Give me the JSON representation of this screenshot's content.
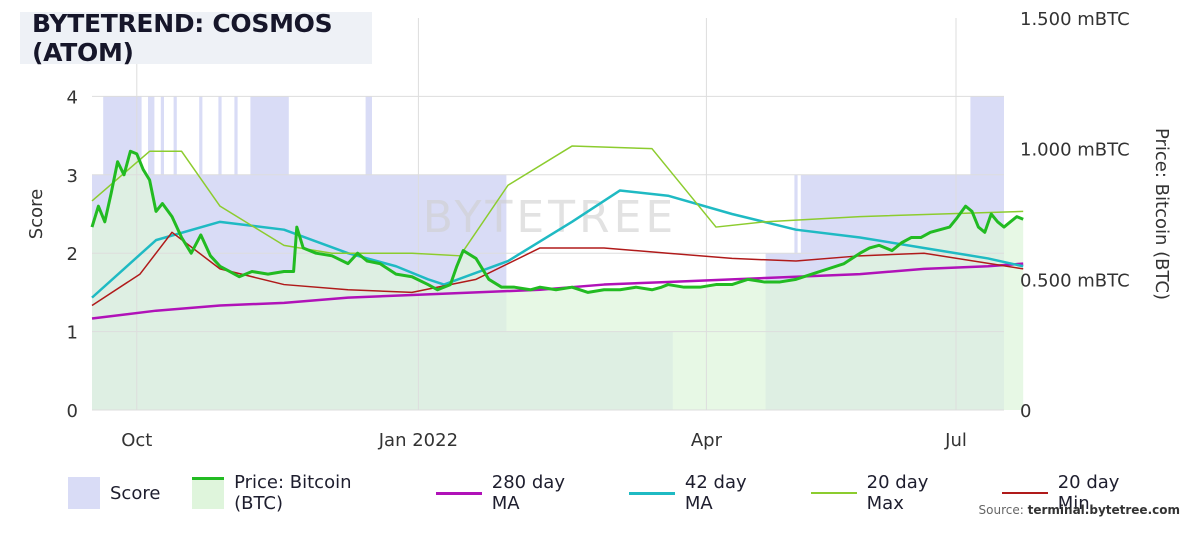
{
  "title": "BYTETREND: COSMOS (ATOM)",
  "watermark": "BYTETREE",
  "source_label": "Source:",
  "source_site": "terminal.bytetree.com",
  "colors": {
    "score_fill": "#d9dcf6",
    "price_fill": "#dff5dc",
    "overlap_fill": "#c8e0d8",
    "price": "#22bb22",
    "ma280": "#b012b8",
    "ma42": "#1fbac3",
    "max20": "#8ccc2e",
    "min20": "#b01a1a"
  },
  "legend": [
    {
      "key": "score",
      "label": "Score",
      "kind": "box",
      "color": "#d9dcf6"
    },
    {
      "key": "price",
      "label": "Price: Bitcoin (BTC)",
      "kind": "box-line",
      "color": "#22bb22",
      "fill": "#dff5dc"
    },
    {
      "key": "ma280",
      "label": "280 day MA",
      "kind": "line",
      "color": "#b012b8"
    },
    {
      "key": "ma42",
      "label": "42 day MA",
      "kind": "line",
      "color": "#1fbac3"
    },
    {
      "key": "max20",
      "label": "20 day Max",
      "kind": "thin-line",
      "color": "#8ccc2e"
    },
    {
      "key": "min20",
      "label": "20 day Min",
      "kind": "thin-line",
      "color": "#b01a1a"
    }
  ],
  "chart_data": {
    "type": "line",
    "title": "BYTETREND: COSMOS (ATOM)",
    "x_ticks": [
      "Oct",
      "Jan 2022",
      "Apr",
      "Jul"
    ],
    "y_left": {
      "label": "Score",
      "ticks": [
        "0",
        "1",
        "2",
        "3",
        "4"
      ],
      "range": [
        0,
        5
      ]
    },
    "y_right": {
      "label": "Price: Bitcoin (BTC)",
      "ticks": [
        "0",
        "0.500 mBTC",
        "1.000 mBTC",
        "1.500 mBTC"
      ],
      "range": [
        0,
        1.5
      ]
    },
    "grid": true,
    "legend_position": "bottom",
    "score": [
      3,
      3,
      3,
      3,
      4,
      4,
      4,
      4,
      4,
      4,
      4,
      4,
      4,
      4,
      4,
      4,
      3,
      3,
      4,
      4,
      3,
      3,
      4,
      3,
      3,
      3,
      4,
      3,
      3,
      3,
      3,
      3,
      3,
      3,
      4,
      3,
      3,
      3,
      3,
      3,
      4,
      3,
      3,
      3,
      3,
      4,
      3,
      3,
      3,
      3,
      4,
      4,
      4,
      4,
      4,
      4,
      4,
      4,
      4,
      4,
      4,
      4,
      3,
      3,
      3,
      3,
      3,
      3,
      3,
      3,
      3,
      3,
      3,
      3,
      3,
      3,
      3,
      3,
      3,
      3,
      3,
      3,
      3,
      3,
      3,
      3,
      4,
      4,
      3,
      3,
      3,
      3,
      3,
      3,
      3,
      3,
      3,
      3,
      3,
      3,
      3,
      3,
      3,
      3,
      3,
      3,
      3,
      3,
      3,
      3,
      3,
      3,
      3,
      3,
      3,
      3,
      3,
      3,
      3,
      3,
      3,
      3,
      3,
      3,
      3,
      3,
      3,
      3,
      3,
      3,
      1,
      1,
      1,
      1,
      1,
      1,
      1,
      1,
      1,
      1,
      1,
      1,
      1,
      1,
      1,
      1,
      1,
      1,
      1,
      1,
      1,
      1,
      1,
      1,
      1,
      1,
      1,
      1,
      1,
      1,
      1,
      1,
      1,
      1,
      1,
      1,
      1,
      1,
      1,
      1,
      1,
      1,
      1,
      1,
      1,
      1,
      1,
      1,
      1,
      1,
      1,
      1,
      0,
      0,
      0,
      0,
      0,
      0,
      0,
      0,
      0,
      0,
      0,
      0,
      0,
      0,
      0,
      0,
      0,
      0,
      0,
      0,
      0,
      0,
      0,
      0,
      0,
      0,
      0,
      0,
      0,
      2,
      2,
      2,
      2,
      2,
      2,
      2,
      2,
      2,
      3,
      2,
      3,
      3,
      3,
      3,
      3,
      3,
      3,
      3,
      3,
      3,
      3,
      3,
      3,
      3,
      3,
      3,
      3,
      3,
      3,
      3,
      3,
      3,
      3,
      3,
      3,
      3,
      3,
      3,
      3,
      3,
      3,
      3,
      3,
      3,
      3,
      3,
      3,
      3,
      3,
      3,
      3,
      3,
      3,
      3,
      3,
      3,
      3,
      3,
      3,
      3,
      3,
      3,
      3,
      4,
      4,
      4,
      4,
      4,
      4,
      4,
      4,
      4,
      4,
      4
    ],
    "price_btc": [
      [
        0,
        0.7
      ],
      [
        2,
        0.78
      ],
      [
        4,
        0.72
      ],
      [
        6,
        0.83
      ],
      [
        8,
        0.95
      ],
      [
        10,
        0.9
      ],
      [
        12,
        0.99
      ],
      [
        14,
        0.98
      ],
      [
        16,
        0.92
      ],
      [
        18,
        0.88
      ],
      [
        20,
        0.76
      ],
      [
        22,
        0.79
      ],
      [
        25,
        0.74
      ],
      [
        28,
        0.66
      ],
      [
        31,
        0.6
      ],
      [
        34,
        0.67
      ],
      [
        37,
        0.59
      ],
      [
        40,
        0.55
      ],
      [
        43,
        0.53
      ],
      [
        46,
        0.51
      ],
      [
        50,
        0.53
      ],
      [
        55,
        0.52
      ],
      [
        60,
        0.53
      ],
      [
        63,
        0.53
      ],
      [
        64,
        0.7
      ],
      [
        66,
        0.62
      ],
      [
        70,
        0.6
      ],
      [
        75,
        0.59
      ],
      [
        80,
        0.56
      ],
      [
        83,
        0.6
      ],
      [
        86,
        0.57
      ],
      [
        90,
        0.56
      ],
      [
        95,
        0.52
      ],
      [
        100,
        0.51
      ],
      [
        105,
        0.48
      ],
      [
        108,
        0.46
      ],
      [
        112,
        0.48
      ],
      [
        114,
        0.55
      ],
      [
        116,
        0.61
      ],
      [
        120,
        0.58
      ],
      [
        124,
        0.5
      ],
      [
        128,
        0.47
      ],
      [
        132,
        0.47
      ],
      [
        137,
        0.46
      ],
      [
        140,
        0.47
      ],
      [
        145,
        0.46
      ],
      [
        150,
        0.47
      ],
      [
        155,
        0.45
      ],
      [
        160,
        0.46
      ],
      [
        165,
        0.46
      ],
      [
        170,
        0.47
      ],
      [
        175,
        0.46
      ],
      [
        178,
        0.47
      ],
      [
        180,
        0.48
      ],
      [
        185,
        0.47
      ],
      [
        190,
        0.47
      ],
      [
        195,
        0.48
      ],
      [
        200,
        0.48
      ],
      [
        205,
        0.5
      ],
      [
        210,
        0.49
      ],
      [
        215,
        0.49
      ],
      [
        220,
        0.5
      ],
      [
        225,
        0.52
      ],
      [
        230,
        0.54
      ],
      [
        235,
        0.56
      ],
      [
        240,
        0.6
      ],
      [
        243,
        0.62
      ],
      [
        246,
        0.63
      ],
      [
        250,
        0.61
      ],
      [
        253,
        0.64
      ],
      [
        256,
        0.66
      ],
      [
        259,
        0.66
      ],
      [
        262,
        0.68
      ],
      [
        265,
        0.69
      ],
      [
        268,
        0.7
      ],
      [
        270,
        0.73
      ],
      [
        273,
        0.78
      ],
      [
        275,
        0.76
      ],
      [
        277,
        0.7
      ],
      [
        279,
        0.68
      ],
      [
        281,
        0.75
      ],
      [
        283,
        0.72
      ],
      [
        285,
        0.7
      ],
      [
        287,
        0.72
      ],
      [
        289,
        0.74
      ],
      [
        291,
        0.73
      ]
    ],
    "ma280": [
      [
        0,
        0.35
      ],
      [
        20,
        0.38
      ],
      [
        40,
        0.4
      ],
      [
        60,
        0.41
      ],
      [
        80,
        0.43
      ],
      [
        100,
        0.44
      ],
      [
        120,
        0.45
      ],
      [
        140,
        0.46
      ],
      [
        160,
        0.48
      ],
      [
        180,
        0.49
      ],
      [
        200,
        0.5
      ],
      [
        220,
        0.51
      ],
      [
        240,
        0.52
      ],
      [
        260,
        0.54
      ],
      [
        280,
        0.55
      ],
      [
        291,
        0.56
      ]
    ],
    "ma42": [
      [
        0,
        0.43
      ],
      [
        20,
        0.65
      ],
      [
        40,
        0.72
      ],
      [
        60,
        0.69
      ],
      [
        80,
        0.6
      ],
      [
        95,
        0.55
      ],
      [
        105,
        0.5
      ],
      [
        110,
        0.48
      ],
      [
        130,
        0.57
      ],
      [
        150,
        0.72
      ],
      [
        165,
        0.84
      ],
      [
        180,
        0.82
      ],
      [
        200,
        0.75
      ],
      [
        220,
        0.69
      ],
      [
        240,
        0.66
      ],
      [
        260,
        0.62
      ],
      [
        280,
        0.58
      ],
      [
        291,
        0.55
      ]
    ],
    "max20": [
      [
        0,
        0.8
      ],
      [
        18,
        0.99
      ],
      [
        28,
        0.99
      ],
      [
        40,
        0.78
      ],
      [
        60,
        0.63
      ],
      [
        75,
        0.6
      ],
      [
        100,
        0.6
      ],
      [
        115,
        0.59
      ],
      [
        130,
        0.86
      ],
      [
        150,
        1.01
      ],
      [
        175,
        1.0
      ],
      [
        195,
        0.7
      ],
      [
        210,
        0.72
      ],
      [
        240,
        0.74
      ],
      [
        291,
        0.76
      ]
    ],
    "min20": [
      [
        0,
        0.4
      ],
      [
        15,
        0.52
      ],
      [
        25,
        0.68
      ],
      [
        40,
        0.54
      ],
      [
        60,
        0.48
      ],
      [
        80,
        0.46
      ],
      [
        100,
        0.45
      ],
      [
        120,
        0.5
      ],
      [
        140,
        0.62
      ],
      [
        160,
        0.62
      ],
      [
        180,
        0.6
      ],
      [
        200,
        0.58
      ],
      [
        220,
        0.57
      ],
      [
        240,
        0.59
      ],
      [
        260,
        0.6
      ],
      [
        291,
        0.54
      ]
    ]
  }
}
